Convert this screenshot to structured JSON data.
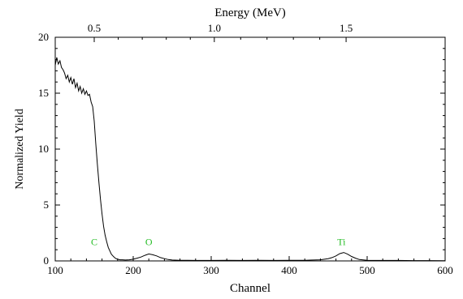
{
  "chart_data": {
    "type": "line",
    "title": "",
    "xlabel": "Channel",
    "ylabel": "Normalized Yield",
    "top_axis_label": "Energy (MeV)",
    "xlim": [
      100,
      600
    ],
    "ylim": [
      0,
      20
    ],
    "x_ticks": [
      100,
      200,
      300,
      400,
      500,
      600
    ],
    "x_tick_labels": [
      "100",
      "200",
      "300",
      "400",
      "500",
      "600"
    ],
    "y_ticks": [
      0,
      5,
      10,
      15,
      20
    ],
    "y_tick_labels": [
      "0",
      "5",
      "10",
      "15",
      "20"
    ],
    "top_ticks": [
      {
        "label": "0.5",
        "channel": 150
      },
      {
        "label": "1.0",
        "channel": 304
      },
      {
        "label": "1.5",
        "channel": 473
      }
    ],
    "grid": false,
    "annotations": [
      {
        "text": "C",
        "x": 150,
        "y": 1.4
      },
      {
        "text": "O",
        "x": 220,
        "y": 1.4
      },
      {
        "text": "Ti",
        "x": 467,
        "y": 1.4
      }
    ],
    "annotation_color": "#22bb22",
    "line_color": "#000000",
    "series": [
      {
        "x": [
          100,
          102,
          104,
          106,
          108,
          110,
          112,
          114,
          116,
          118,
          120,
          122,
          124,
          126,
          128,
          130,
          132,
          134,
          136,
          138,
          140,
          142,
          144,
          146,
          148,
          150,
          152,
          154,
          156,
          158,
          160,
          162,
          164,
          166,
          168,
          170,
          172,
          174,
          176,
          178,
          180,
          183,
          186,
          190,
          195,
          200,
          205,
          210,
          215,
          220,
          225,
          230,
          235,
          240,
          245,
          250,
          260,
          270,
          280,
          300,
          320,
          340,
          360,
          380,
          400,
          420,
          440,
          450,
          455,
          460,
          465,
          470,
          475,
          480,
          485,
          490,
          500,
          520,
          540,
          560,
          580,
          600
        ],
        "y": [
          17.5,
          18.2,
          17.6,
          17.9,
          17.3,
          17.1,
          16.8,
          16.3,
          16.6,
          16.0,
          16.4,
          15.8,
          16.3,
          15.5,
          15.9,
          15.2,
          15.6,
          15.0,
          15.4,
          14.9,
          15.2,
          14.8,
          14.9,
          14.2,
          13.8,
          12.5,
          10.5,
          8.7,
          7.0,
          5.5,
          4.2,
          3.1,
          2.3,
          1.7,
          1.2,
          0.9,
          0.6,
          0.45,
          0.3,
          0.2,
          0.15,
          0.1,
          0.1,
          0.08,
          0.1,
          0.15,
          0.25,
          0.35,
          0.5,
          0.62,
          0.55,
          0.45,
          0.3,
          0.2,
          0.12,
          0.08,
          0.06,
          0.05,
          0.04,
          0.04,
          0.05,
          0.04,
          0.05,
          0.04,
          0.05,
          0.06,
          0.1,
          0.2,
          0.3,
          0.45,
          0.65,
          0.75,
          0.6,
          0.4,
          0.25,
          0.12,
          0.06,
          0.04,
          0.04,
          0.03,
          0.03,
          0.02
        ]
      }
    ]
  }
}
